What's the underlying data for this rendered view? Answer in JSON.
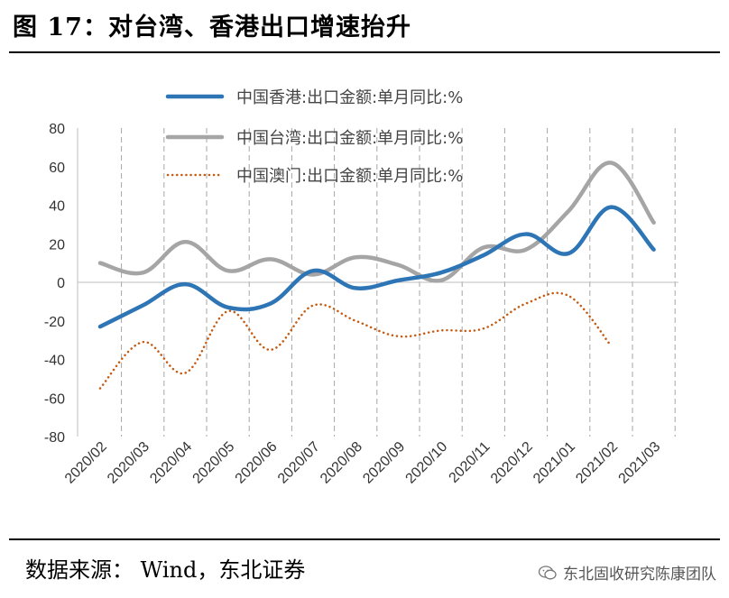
{
  "title": "图 17：对台湾、香港出口增速抬升",
  "source": "数据来源： Wind，东北证券",
  "watermark": "东北固收研究陈康团队",
  "chart_data": {
    "type": "line",
    "title": "对台湾、香港出口增速抬升",
    "xlabel": "",
    "ylabel": "",
    "ylim": [
      -80,
      80
    ],
    "yticks": [
      80,
      60,
      40,
      20,
      0,
      -20,
      -40,
      -60,
      -80
    ],
    "grid": "vertical dashed",
    "legend_position": "top",
    "categories": [
      "2020/02",
      "2020/03",
      "2020/04",
      "2020/05",
      "2020/06",
      "2020/07",
      "2020/08",
      "2020/09",
      "2020/10",
      "2020/11",
      "2020/12",
      "2021/01",
      "2021/02",
      "2021/03"
    ],
    "series": [
      {
        "name": "中国香港:出口金额:单月同比:%",
        "color": "#2e75b6",
        "style": "solid",
        "values": [
          -23,
          -12,
          -1,
          -13,
          -11,
          6,
          -3,
          1,
          5,
          14,
          25,
          15,
          39,
          17
        ]
      },
      {
        "name": "中国台湾:出口金额:单月同比:%",
        "color": "#a5a5a5",
        "style": "solid",
        "values": [
          10,
          5,
          21,
          6,
          12,
          4,
          13,
          9,
          1,
          18,
          17,
          37,
          62,
          31
        ]
      },
      {
        "name": "中国澳门:出口金额:单月同比:%",
        "color": "#c55a11",
        "style": "dotted",
        "values": [
          -55,
          -31,
          -47,
          -15,
          -35,
          -12,
          -20,
          -28,
          -25,
          -24,
          -11,
          -7,
          -33,
          null
        ]
      }
    ]
  }
}
